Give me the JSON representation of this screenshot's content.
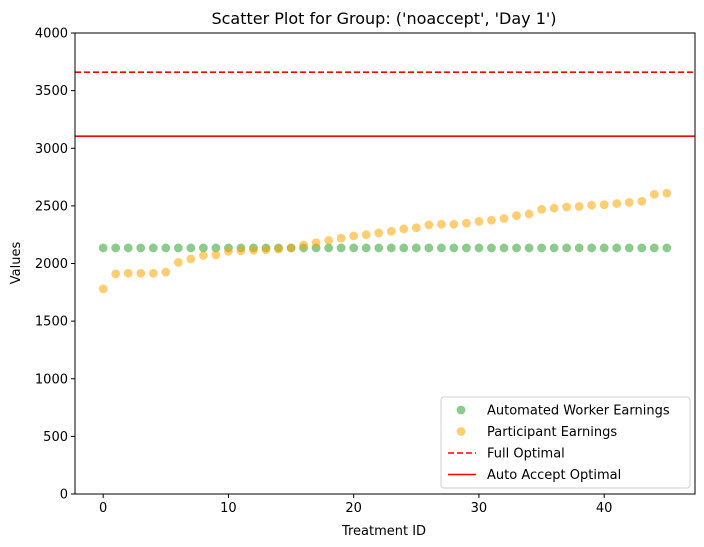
{
  "chart_data": {
    "type": "scatter",
    "title": "Scatter Plot for Group: ('noaccept', 'Day 1')",
    "xlabel": "Treatment ID",
    "ylabel": "Values",
    "xlim": [
      -2.25,
      47.25
    ],
    "ylim": [
      0,
      4000
    ],
    "xticks": [
      0,
      10,
      20,
      30,
      40
    ],
    "yticks": [
      0,
      500,
      1000,
      1500,
      2000,
      2500,
      3000,
      3500,
      4000
    ],
    "grid": false,
    "legend_position": "lower-right",
    "series": [
      {
        "name": "Automated Worker Earnings",
        "kind": "scatter",
        "color": "#2ca02c",
        "x": [
          0,
          1,
          2,
          3,
          4,
          5,
          6,
          7,
          8,
          9,
          10,
          11,
          12,
          13,
          14,
          15,
          16,
          17,
          18,
          19,
          20,
          21,
          22,
          23,
          24,
          25,
          26,
          27,
          28,
          29,
          30,
          31,
          32,
          33,
          34,
          35,
          36,
          37,
          38,
          39,
          40,
          41,
          42,
          43,
          44,
          45
        ],
        "values": [
          2135,
          2135,
          2135,
          2135,
          2135,
          2135,
          2135,
          2135,
          2135,
          2135,
          2135,
          2135,
          2135,
          2135,
          2135,
          2135,
          2135,
          2135,
          2135,
          2135,
          2135,
          2135,
          2135,
          2135,
          2135,
          2135,
          2135,
          2135,
          2135,
          2135,
          2135,
          2135,
          2135,
          2135,
          2135,
          2135,
          2135,
          2135,
          2135,
          2135,
          2135,
          2135,
          2135,
          2135,
          2135,
          2135
        ]
      },
      {
        "name": "Participant Earnings",
        "kind": "scatter",
        "color": "#ffa500",
        "x": [
          0,
          1,
          2,
          3,
          4,
          5,
          6,
          7,
          8,
          9,
          10,
          11,
          12,
          13,
          14,
          15,
          16,
          17,
          18,
          19,
          20,
          21,
          22,
          23,
          24,
          25,
          26,
          27,
          28,
          29,
          30,
          31,
          32,
          33,
          34,
          35,
          36,
          37,
          38,
          39,
          40,
          41,
          42,
          43,
          44,
          45
        ],
        "values": [
          1780,
          1910,
          1915,
          1915,
          1915,
          1925,
          2010,
          2040,
          2070,
          2075,
          2105,
          2110,
          2115,
          2120,
          2125,
          2135,
          2160,
          2180,
          2200,
          2220,
          2240,
          2250,
          2265,
          2280,
          2300,
          2310,
          2335,
          2340,
          2340,
          2350,
          2365,
          2375,
          2390,
          2415,
          2430,
          2470,
          2480,
          2490,
          2495,
          2505,
          2510,
          2520,
          2530,
          2540,
          2600,
          2610
        ]
      },
      {
        "name": "Full Optimal",
        "kind": "hline",
        "style": "dashed",
        "color": "#ff0000",
        "y": 3660
      },
      {
        "name": "Auto Accept Optimal",
        "kind": "hline",
        "style": "solid",
        "color": "#ff0000",
        "y": 3105
      }
    ]
  }
}
